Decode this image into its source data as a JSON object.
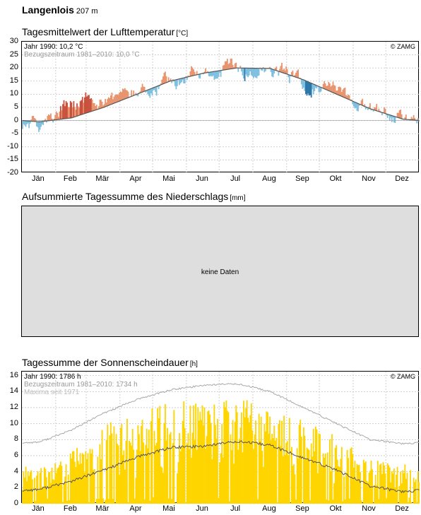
{
  "station": {
    "name": "Langenlois",
    "elevation": "207 m"
  },
  "months": [
    "Jän",
    "Feb",
    "Mär",
    "Apr",
    "Mai",
    "Jun",
    "Jul",
    "Aug",
    "Sep",
    "Okt",
    "Nov",
    "Dez"
  ],
  "temperature": {
    "title": "Tagesmittelwert der Lufttemperatur",
    "unit": "[°C]",
    "legend_year": "Jahr 1990: 10,2 °C",
    "legend_ref": "Bezugszeitraum 1981–2010: 10,0 °C",
    "copyright": "© ZAMG",
    "yticks": [
      "30",
      "25",
      "20",
      "15",
      "10",
      "5",
      "0",
      "-5",
      "-10",
      "-15",
      "-20"
    ],
    "colors": {
      "warm": "#e8946f",
      "warm_strong": "#c8503c",
      "cold": "#7fbfdf",
      "cold_strong": "#2c75a8",
      "climate_line": "#555555"
    }
  },
  "precipitation": {
    "title": "Aufsummierte Tagessumme des Niederschlags",
    "unit": "[mm]",
    "no_data": "keine Daten"
  },
  "sunshine": {
    "title": "Tagessumme der Sonnenscheindauer",
    "unit": "[h]",
    "legend_year": "Jahr 1990: 1786 h",
    "legend_ref": "Bezugszeitraum 1981–2010: 1734 h",
    "legend_max": "Maxima seit 1971",
    "copyright": "© ZAMG",
    "yticks": [
      "16",
      "14",
      "12",
      "10",
      "8",
      "6",
      "4",
      "2",
      "0"
    ],
    "colors": {
      "bars": "#ffd500",
      "mean_line": "#555555",
      "max_line": "#a8a8a8"
    }
  },
  "chart_data": [
    {
      "type": "bar",
      "title": "Tagesmittelwert der Lufttemperatur",
      "ylabel": "°C",
      "ylim": [
        -20,
        30
      ],
      "grid": true,
      "x": "days of year 1990 (monthly anchors, mid-month)",
      "categories": [
        "Jän",
        "Feb",
        "Mär",
        "Apr",
        "Mai",
        "Jun",
        "Jul",
        "Aug",
        "Sep",
        "Okt",
        "Nov",
        "Dez"
      ],
      "series": [
        {
          "name": "Jahr 1990",
          "values": [
            -1.5,
            6.5,
            8.5,
            10.0,
            15.5,
            18.5,
            20.0,
            20.5,
            14.0,
            10.5,
            5.0,
            -0.5
          ]
        },
        {
          "name": "Bezugszeitraum 1981–2010",
          "values": [
            -0.5,
            1.0,
            5.0,
            10.0,
            15.0,
            18.0,
            20.0,
            19.8,
            15.5,
            10.0,
            4.5,
            0.5
          ]
        }
      ]
    },
    {
      "type": "area",
      "title": "Aufsummierte Tagessumme des Niederschlags",
      "ylabel": "mm",
      "series": []
    },
    {
      "type": "bar",
      "title": "Tagessumme der Sonnenscheindauer",
      "ylabel": "h",
      "ylim": [
        0,
        16
      ],
      "grid": true,
      "categories": [
        "Jän",
        "Feb",
        "Mär",
        "Apr",
        "Mai",
        "Jun",
        "Jul",
        "Aug",
        "Sep",
        "Okt",
        "Nov",
        "Dez"
      ],
      "series": [
        {
          "name": "Jahr 1990 (typical daily max)",
          "values": [
            4.5,
            6.5,
            10.0,
            11.0,
            13.0,
            12.5,
            13.5,
            12.0,
            10.5,
            8.5,
            5.5,
            5.0
          ]
        },
        {
          "name": "Bezugszeitraum 1981–2010",
          "values": [
            1.8,
            2.8,
            4.2,
            5.8,
            7.0,
            7.2,
            7.8,
            7.3,
            5.7,
            4.2,
            2.2,
            1.5
          ]
        },
        {
          "name": "Maxima seit 1971",
          "values": [
            7.7,
            9.2,
            11.3,
            13.0,
            14.2,
            14.8,
            15.0,
            14.0,
            12.0,
            10.0,
            8.0,
            7.5
          ]
        }
      ]
    }
  ]
}
